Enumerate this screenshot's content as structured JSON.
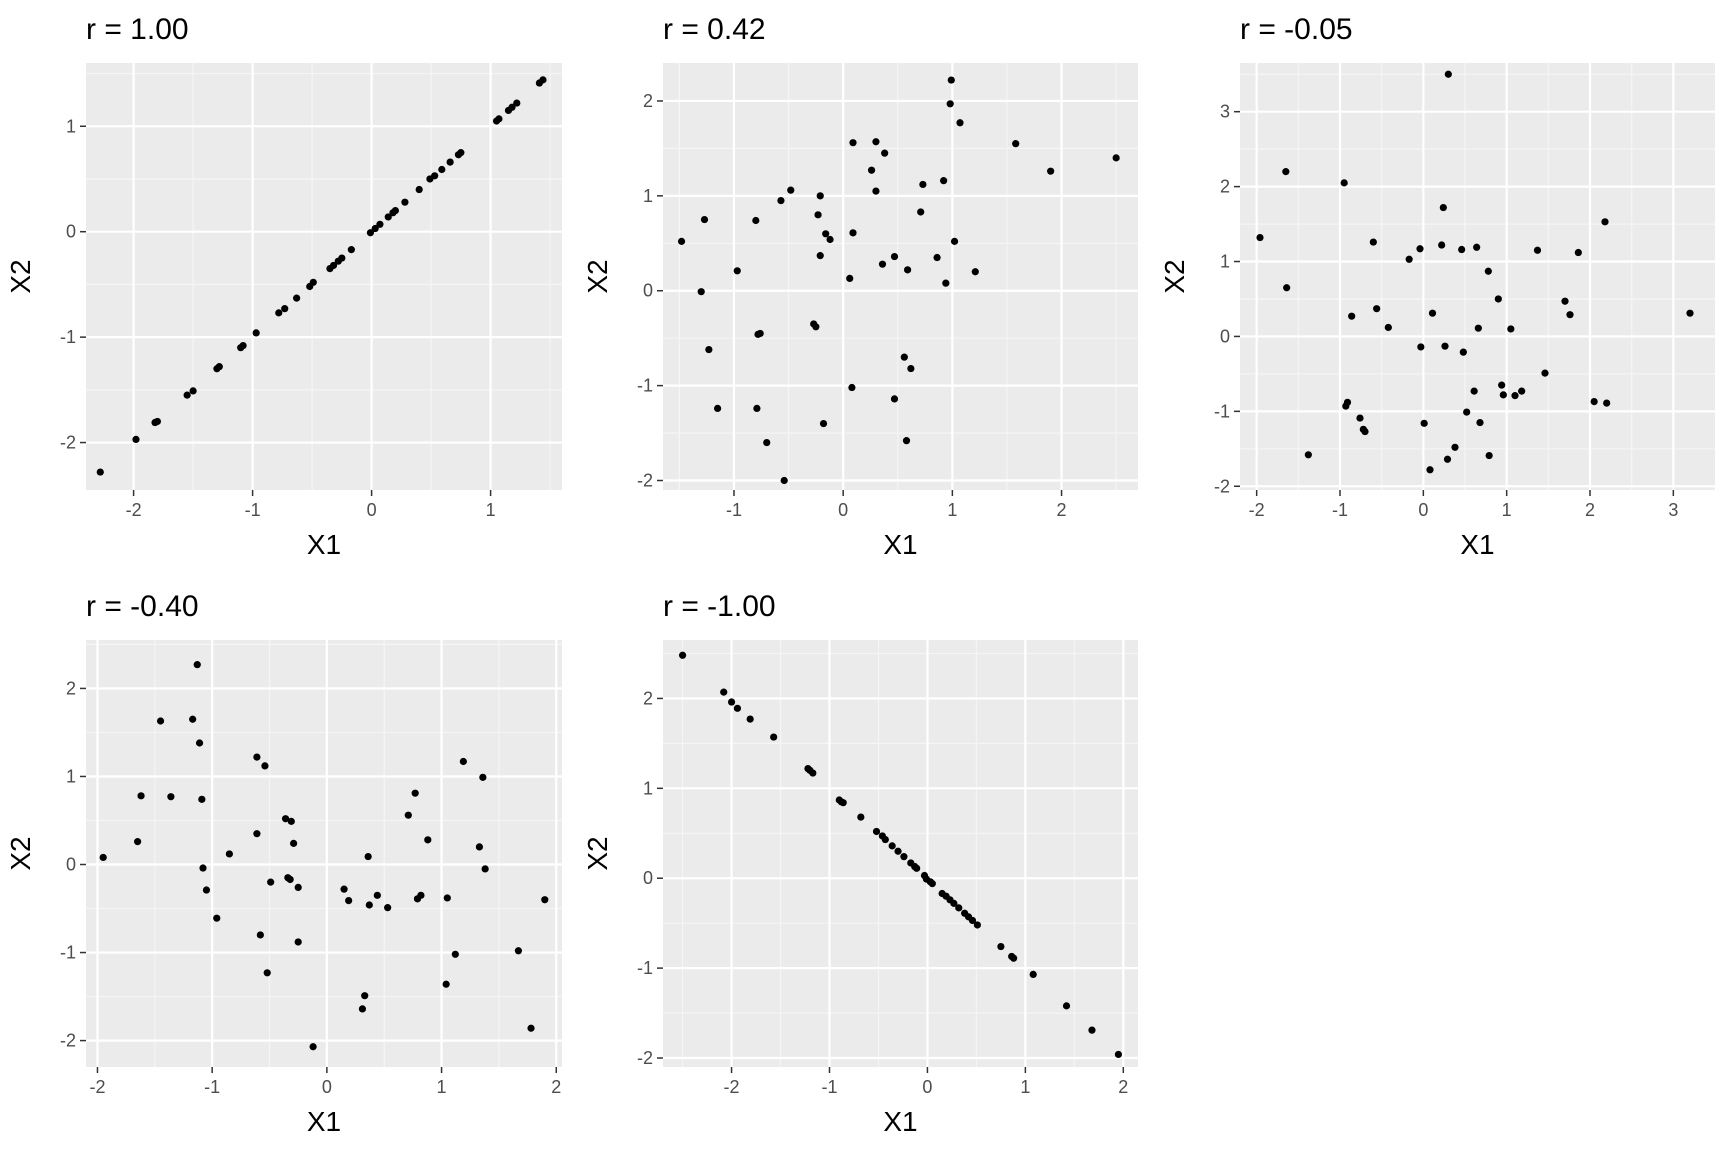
{
  "figure": {
    "colors": {
      "panel_background": "#ebebeb",
      "grid_major": "#ffffff",
      "grid_minor": "#f5f5f5",
      "points": "#000000",
      "tick": "#333333",
      "tick_label": "#4d4d4d"
    }
  },
  "chart_data": [
    {
      "type": "scatter",
      "title": "r = 1.00",
      "xlabel": "X1",
      "ylabel": "X2",
      "xlim": [
        -2.4,
        1.6
      ],
      "ylim": [
        -2.45,
        1.6
      ],
      "xticks": [
        -2,
        -1,
        0,
        1
      ],
      "yticks": [
        -2,
        -1,
        0,
        1
      ],
      "grid": true,
      "points": [
        [
          -2.28,
          -2.28
        ],
        [
          -1.98,
          -1.97
        ],
        [
          -1.82,
          -1.81
        ],
        [
          -1.8,
          -1.8
        ],
        [
          -1.55,
          -1.55
        ],
        [
          -1.5,
          -1.51
        ],
        [
          -1.3,
          -1.3
        ],
        [
          -1.28,
          -1.28
        ],
        [
          -1.1,
          -1.1
        ],
        [
          -1.08,
          -1.08
        ],
        [
          -0.97,
          -0.96
        ],
        [
          -0.78,
          -0.77
        ],
        [
          -0.73,
          -0.73
        ],
        [
          -0.63,
          -0.63
        ],
        [
          -0.52,
          -0.52
        ],
        [
          -0.49,
          -0.48
        ],
        [
          -0.35,
          -0.35
        ],
        [
          -0.32,
          -0.32
        ],
        [
          -0.28,
          -0.28
        ],
        [
          -0.25,
          -0.25
        ],
        [
          -0.17,
          -0.17
        ],
        [
          -0.01,
          -0.01
        ],
        [
          0.03,
          0.03
        ],
        [
          0.07,
          0.07
        ],
        [
          0.14,
          0.14
        ],
        [
          0.18,
          0.18
        ],
        [
          0.2,
          0.2
        ],
        [
          0.28,
          0.28
        ],
        [
          0.4,
          0.4
        ],
        [
          0.49,
          0.5
        ],
        [
          0.53,
          0.53
        ],
        [
          0.59,
          0.59
        ],
        [
          0.66,
          0.66
        ],
        [
          0.73,
          0.73
        ],
        [
          0.75,
          0.75
        ],
        [
          1.05,
          1.05
        ],
        [
          1.07,
          1.07
        ],
        [
          1.15,
          1.15
        ],
        [
          1.18,
          1.18
        ],
        [
          1.22,
          1.22
        ],
        [
          1.41,
          1.41
        ],
        [
          1.44,
          1.44
        ]
      ]
    },
    {
      "type": "scatter",
      "title": "r = 0.42",
      "xlabel": "X1",
      "ylabel": "X2",
      "xlim": [
        -1.65,
        2.7
      ],
      "ylim": [
        -2.1,
        2.4
      ],
      "xticks": [
        -1,
        0,
        1,
        2
      ],
      "yticks": [
        -2,
        -1,
        0,
        1,
        2
      ],
      "grid": true,
      "points": [
        [
          -1.48,
          0.52
        ],
        [
          -1.3,
          -0.01
        ],
        [
          -1.27,
          0.75
        ],
        [
          -1.23,
          -0.62
        ],
        [
          -1.15,
          -1.24
        ],
        [
          -0.97,
          0.21
        ],
        [
          -0.8,
          0.74
        ],
        [
          -0.78,
          -0.46
        ],
        [
          -0.76,
          -0.45
        ],
        [
          -0.79,
          -1.24
        ],
        [
          -0.7,
          -1.6
        ],
        [
          -0.57,
          0.95
        ],
        [
          -0.54,
          -2.0
        ],
        [
          -0.48,
          1.06
        ],
        [
          -0.27,
          -0.35
        ],
        [
          -0.25,
          -0.38
        ],
        [
          -0.23,
          0.8
        ],
        [
          -0.21,
          1.0
        ],
        [
          -0.21,
          0.37
        ],
        [
          -0.18,
          -1.4
        ],
        [
          -0.16,
          0.6
        ],
        [
          -0.12,
          0.54
        ],
        [
          0.06,
          0.13
        ],
        [
          0.08,
          -1.02
        ],
        [
          0.09,
          0.61
        ],
        [
          0.09,
          1.56
        ],
        [
          0.26,
          1.27
        ],
        [
          0.3,
          1.57
        ],
        [
          0.3,
          1.05
        ],
        [
          0.36,
          0.28
        ],
        [
          0.38,
          1.45
        ],
        [
          0.47,
          0.36
        ],
        [
          0.47,
          -1.14
        ],
        [
          0.56,
          -0.7
        ],
        [
          0.58,
          -1.58
        ],
        [
          0.59,
          0.22
        ],
        [
          0.62,
          -0.82
        ],
        [
          0.71,
          0.83
        ],
        [
          0.73,
          1.12
        ],
        [
          0.86,
          0.35
        ],
        [
          0.92,
          1.16
        ],
        [
          0.94,
          0.08
        ],
        [
          0.98,
          1.97
        ],
        [
          0.99,
          2.22
        ],
        [
          1.02,
          0.52
        ],
        [
          1.07,
          1.77
        ],
        [
          1.21,
          0.2
        ],
        [
          1.58,
          1.55
        ],
        [
          1.9,
          1.26
        ],
        [
          2.5,
          1.4
        ]
      ]
    },
    {
      "type": "scatter",
      "title": "r = -0.05",
      "xlabel": "X1",
      "ylabel": "X2",
      "xlim": [
        -2.2,
        3.5
      ],
      "ylim": [
        -2.05,
        3.65
      ],
      "xticks": [
        -2,
        -1,
        0,
        1,
        2,
        3
      ],
      "yticks": [
        -2,
        -1,
        0,
        1,
        2,
        3
      ],
      "grid": true,
      "points": [
        [
          -1.96,
          1.32
        ],
        [
          -1.65,
          2.2
        ],
        [
          -1.64,
          0.65
        ],
        [
          -1.38,
          -1.58
        ],
        [
          -0.95,
          2.05
        ],
        [
          -0.93,
          -0.93
        ],
        [
          -0.91,
          -0.88
        ],
        [
          -0.86,
          0.27
        ],
        [
          -0.76,
          -1.09
        ],
        [
          -0.72,
          -1.24
        ],
        [
          -0.7,
          -1.27
        ],
        [
          -0.6,
          1.26
        ],
        [
          -0.56,
          0.37
        ],
        [
          -0.42,
          0.12
        ],
        [
          -0.17,
          1.03
        ],
        [
          -0.04,
          1.17
        ],
        [
          -0.03,
          -0.14
        ],
        [
          0.01,
          -1.16
        ],
        [
          0.08,
          -1.78
        ],
        [
          0.11,
          0.31
        ],
        [
          0.22,
          1.22
        ],
        [
          0.24,
          1.72
        ],
        [
          0.26,
          -0.13
        ],
        [
          0.29,
          -1.64
        ],
        [
          0.3,
          3.5
        ],
        [
          0.38,
          -1.48
        ],
        [
          0.46,
          1.16
        ],
        [
          0.48,
          -0.21
        ],
        [
          0.52,
          -1.01
        ],
        [
          0.61,
          -0.73
        ],
        [
          0.64,
          1.19
        ],
        [
          0.66,
          0.11
        ],
        [
          0.68,
          -1.15
        ],
        [
          0.78,
          0.87
        ],
        [
          0.79,
          -1.59
        ],
        [
          0.9,
          0.5
        ],
        [
          0.94,
          -0.65
        ],
        [
          0.96,
          -0.78
        ],
        [
          1.05,
          0.1
        ],
        [
          1.1,
          -0.79
        ],
        [
          1.18,
          -0.73
        ],
        [
          1.37,
          1.15
        ],
        [
          1.46,
          -0.49
        ],
        [
          1.7,
          0.47
        ],
        [
          1.76,
          0.29
        ],
        [
          1.86,
          1.12
        ],
        [
          2.05,
          -0.87
        ],
        [
          2.18,
          1.53
        ],
        [
          2.2,
          -0.89
        ],
        [
          3.2,
          0.31
        ]
      ]
    },
    {
      "type": "scatter",
      "title": "r = -0.40",
      "xlabel": "X1",
      "ylabel": "X2",
      "xlim": [
        -2.1,
        2.05
      ],
      "ylim": [
        -2.3,
        2.55
      ],
      "xticks": [
        -2,
        -1,
        0,
        1,
        2
      ],
      "yticks": [
        -2,
        -1,
        0,
        1,
        2
      ],
      "grid": true,
      "points": [
        [
          -1.95,
          0.08
        ],
        [
          -1.65,
          0.26
        ],
        [
          -1.62,
          0.78
        ],
        [
          -1.45,
          1.63
        ],
        [
          -1.36,
          0.77
        ],
        [
          -1.17,
          1.65
        ],
        [
          -1.13,
          2.27
        ],
        [
          -1.11,
          1.38
        ],
        [
          -1.09,
          0.74
        ],
        [
          -1.08,
          -0.04
        ],
        [
          -1.05,
          -0.29
        ],
        [
          -0.96,
          -0.61
        ],
        [
          -0.85,
          0.12
        ],
        [
          -0.61,
          1.22
        ],
        [
          -0.61,
          0.35
        ],
        [
          -0.58,
          -0.8
        ],
        [
          -0.54,
          1.12
        ],
        [
          -0.52,
          -1.23
        ],
        [
          -0.49,
          -0.2
        ],
        [
          -0.36,
          0.52
        ],
        [
          -0.34,
          -0.15
        ],
        [
          -0.32,
          -0.17
        ],
        [
          -0.31,
          0.49
        ],
        [
          -0.29,
          0.24
        ],
        [
          -0.25,
          -0.26
        ],
        [
          -0.25,
          -0.88
        ],
        [
          -0.12,
          -2.07
        ],
        [
          0.15,
          -0.28
        ],
        [
          0.19,
          -0.41
        ],
        [
          0.31,
          -1.64
        ],
        [
          0.33,
          -1.49
        ],
        [
          0.36,
          0.09
        ],
        [
          0.37,
          -0.46
        ],
        [
          0.44,
          -0.35
        ],
        [
          0.53,
          -0.49
        ],
        [
          0.71,
          0.56
        ],
        [
          0.77,
          0.81
        ],
        [
          0.79,
          -0.39
        ],
        [
          0.82,
          -0.35
        ],
        [
          0.88,
          0.28
        ],
        [
          1.04,
          -1.36
        ],
        [
          1.05,
          -0.38
        ],
        [
          1.12,
          -1.02
        ],
        [
          1.19,
          1.17
        ],
        [
          1.33,
          0.2
        ],
        [
          1.36,
          0.99
        ],
        [
          1.38,
          -0.05
        ],
        [
          1.67,
          -0.98
        ],
        [
          1.78,
          -1.86
        ],
        [
          1.9,
          -0.4
        ]
      ]
    },
    {
      "type": "scatter",
      "title": "r = -1.00",
      "xlabel": "X1",
      "ylabel": "X2",
      "xlim": [
        -2.7,
        2.15
      ],
      "ylim": [
        -2.1,
        2.65
      ],
      "xticks": [
        -2,
        -1,
        0,
        1,
        2
      ],
      "yticks": [
        -2,
        -1,
        0,
        1,
        2
      ],
      "grid": true,
      "points": [
        [
          -2.5,
          2.48
        ],
        [
          -2.08,
          2.07
        ],
        [
          -2.0,
          1.96
        ],
        [
          -1.94,
          1.89
        ],
        [
          -1.81,
          1.77
        ],
        [
          -1.57,
          1.57
        ],
        [
          -1.22,
          1.22
        ],
        [
          -1.2,
          1.2
        ],
        [
          -1.17,
          1.17
        ],
        [
          -0.9,
          0.87
        ],
        [
          -0.88,
          0.85
        ],
        [
          -0.86,
          0.84
        ],
        [
          -0.68,
          0.68
        ],
        [
          -0.52,
          0.52
        ],
        [
          -0.46,
          0.47
        ],
        [
          -0.43,
          0.43
        ],
        [
          -0.36,
          0.36
        ],
        [
          -0.3,
          0.3
        ],
        [
          -0.24,
          0.24
        ],
        [
          -0.17,
          0.17
        ],
        [
          -0.13,
          0.13
        ],
        [
          -0.11,
          0.11
        ],
        [
          -0.03,
          0.03
        ],
        [
          -0.01,
          -0.01
        ],
        [
          0.03,
          -0.04
        ],
        [
          0.05,
          -0.06
        ],
        [
          0.15,
          -0.17
        ],
        [
          0.19,
          -0.2
        ],
        [
          0.23,
          -0.24
        ],
        [
          0.27,
          -0.28
        ],
        [
          0.32,
          -0.33
        ],
        [
          0.38,
          -0.39
        ],
        [
          0.42,
          -0.43
        ],
        [
          0.46,
          -0.47
        ],
        [
          0.51,
          -0.52
        ],
        [
          0.75,
          -0.76
        ],
        [
          0.86,
          -0.87
        ],
        [
          0.88,
          -0.89
        ],
        [
          1.08,
          -1.07
        ],
        [
          1.42,
          -1.42
        ],
        [
          1.68,
          -1.69
        ],
        [
          1.95,
          -1.96
        ]
      ]
    }
  ]
}
